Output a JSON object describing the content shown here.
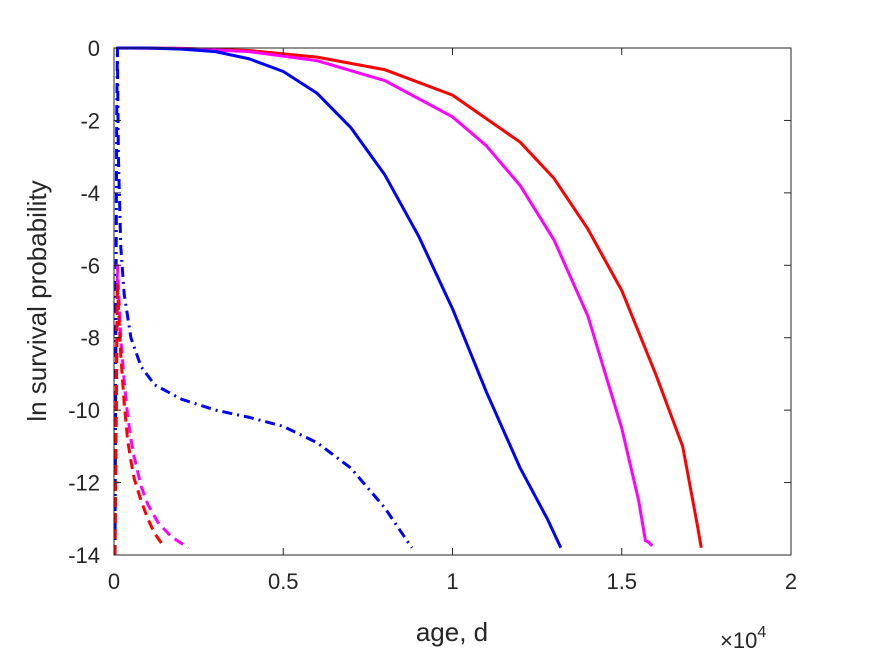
{
  "chart_data": {
    "type": "line",
    "title": "",
    "xlabel": "age, d",
    "ylabel": "ln survival probability",
    "xlim": [
      0,
      20000
    ],
    "ylim": [
      -14,
      0
    ],
    "x_ticks": [
      0,
      5000,
      10000,
      15000,
      20000
    ],
    "x_tick_labels": [
      "0",
      "0.5",
      "1",
      "1.5",
      "2"
    ],
    "y_ticks": [
      0,
      -2,
      -4,
      -6,
      -8,
      -10,
      -12,
      -14
    ],
    "y_tick_labels": [
      "0",
      "-2",
      "-4",
      "-6",
      "-8",
      "-10",
      "-12",
      "-14"
    ],
    "x_multiplier": {
      "base": "×10",
      "exponent": "4"
    },
    "grid": false,
    "legend": "none",
    "series": [
      {
        "color": "#ff0000",
        "style": "solid",
        "points": [
          [
            100,
            0
          ],
          [
            2000,
            -0.01
          ],
          [
            4000,
            -0.07
          ],
          [
            6000,
            -0.25
          ],
          [
            8000,
            -0.6
          ],
          [
            10000,
            -1.3
          ],
          [
            12000,
            -2.6
          ],
          [
            13000,
            -3.6
          ],
          [
            14000,
            -5.0
          ],
          [
            15000,
            -6.7
          ],
          [
            16000,
            -9.0
          ],
          [
            16800,
            -11.0
          ],
          [
            17200,
            -13.0
          ],
          [
            17350,
            -13.8
          ]
        ]
      },
      {
        "color": "#ff00ff",
        "style": "solid",
        "points": [
          [
            100,
            0
          ],
          [
            2000,
            -0.01
          ],
          [
            4000,
            -0.1
          ],
          [
            6000,
            -0.35
          ],
          [
            8000,
            -0.9
          ],
          [
            10000,
            -1.9
          ],
          [
            11000,
            -2.7
          ],
          [
            12000,
            -3.8
          ],
          [
            13000,
            -5.3
          ],
          [
            14000,
            -7.4
          ],
          [
            15000,
            -10.5
          ],
          [
            15500,
            -12.5
          ],
          [
            15700,
            -13.6
          ],
          [
            15800,
            -13.65
          ],
          [
            15900,
            -13.75
          ]
        ]
      },
      {
        "color": "#0000ff",
        "style": "solid",
        "points": [
          [
            100,
            0
          ],
          [
            1000,
            0
          ],
          [
            2000,
            -0.03
          ],
          [
            3000,
            -0.1
          ],
          [
            4000,
            -0.3
          ],
          [
            5000,
            -0.65
          ],
          [
            6000,
            -1.25
          ],
          [
            7000,
            -2.2
          ],
          [
            8000,
            -3.5
          ],
          [
            9000,
            -5.2
          ],
          [
            10000,
            -7.2
          ],
          [
            11000,
            -9.5
          ],
          [
            12000,
            -11.6
          ],
          [
            12800,
            -13.0
          ],
          [
            13200,
            -13.8
          ]
        ]
      },
      {
        "color": "#0000ff",
        "style": "dashdot",
        "points": [
          [
            30,
            -14
          ],
          [
            60,
            -7
          ],
          [
            80,
            -2
          ],
          [
            100,
            0
          ],
          [
            130,
            -3
          ],
          [
            200,
            -5.5
          ],
          [
            300,
            -6.8
          ],
          [
            500,
            -8.0
          ],
          [
            800,
            -8.8
          ],
          [
            1200,
            -9.3
          ],
          [
            2000,
            -9.7
          ],
          [
            3000,
            -10.0
          ],
          [
            4000,
            -10.2
          ],
          [
            5000,
            -10.45
          ],
          [
            6000,
            -10.9
          ],
          [
            7000,
            -11.6
          ],
          [
            8000,
            -12.7
          ],
          [
            8800,
            -13.8
          ]
        ]
      },
      {
        "color": "#ff00ff",
        "style": "dashed",
        "points": [
          [
            30,
            -14
          ],
          [
            100,
            -6
          ],
          [
            200,
            -8
          ],
          [
            300,
            -9.2
          ],
          [
            400,
            -10.1
          ],
          [
            500,
            -10.8
          ],
          [
            600,
            -11.3
          ],
          [
            800,
            -12.1
          ],
          [
            1000,
            -12.6
          ],
          [
            1300,
            -13.1
          ],
          [
            1700,
            -13.5
          ],
          [
            2200,
            -13.8
          ]
        ]
      },
      {
        "color": "#ff0000",
        "style": "dashed",
        "points": [
          [
            30,
            -14
          ],
          [
            100,
            -6.5
          ],
          [
            200,
            -8.5
          ],
          [
            300,
            -9.8
          ],
          [
            400,
            -10.8
          ],
          [
            500,
            -11.4
          ],
          [
            600,
            -11.9
          ],
          [
            800,
            -12.5
          ],
          [
            1000,
            -13.0
          ],
          [
            1200,
            -13.4
          ],
          [
            1500,
            -13.8
          ]
        ]
      }
    ]
  }
}
